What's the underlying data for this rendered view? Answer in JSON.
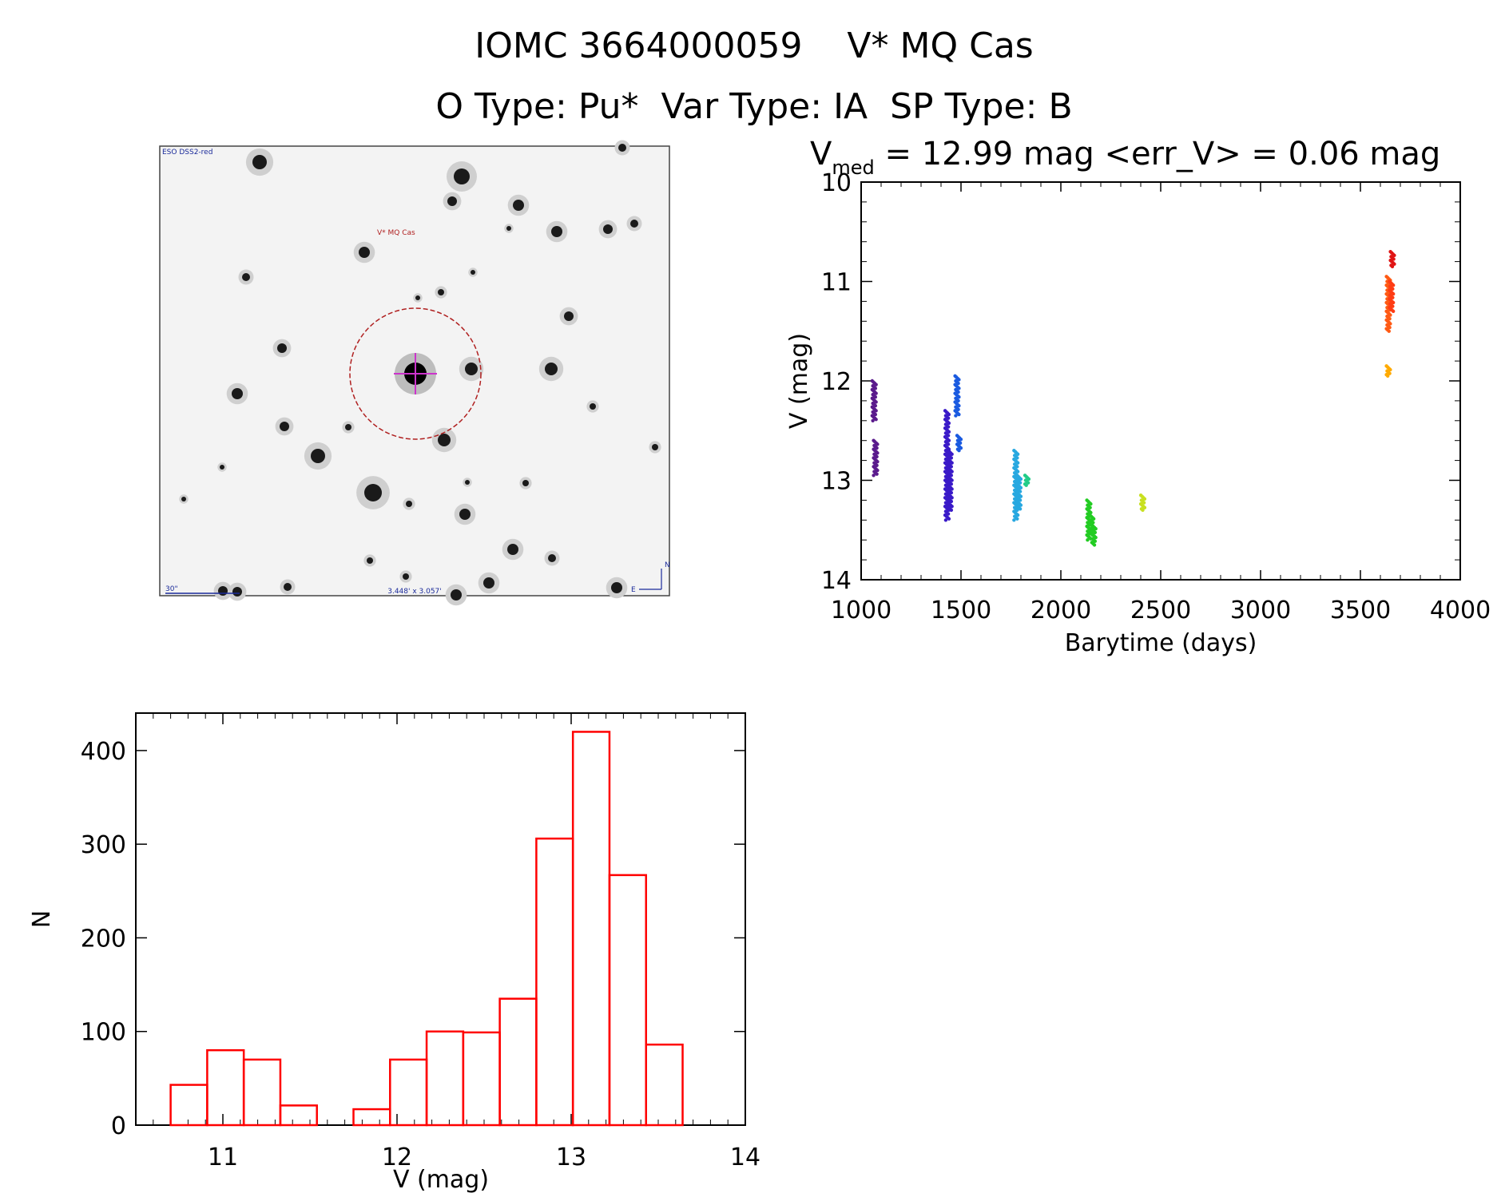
{
  "header": {
    "title": "IOMC 3664000059    V* MQ Cas",
    "subtitle": "O Type: Pu*  Var Type: IA  SP Type: B"
  },
  "finder": {
    "survey_label": "ESO DSS2-red",
    "target_label": "V* MQ Cas",
    "scale_label": "30\"",
    "fov_label": "3.448' x 3.057'",
    "north_label": "N",
    "east_label": "E"
  },
  "chart_data": [
    {
      "type": "scatter",
      "title_prefix": "V",
      "title_sub": "med",
      "title_rest": " = 12.99 mag <err_V> = 0.06 mag",
      "xlabel": "Barytime (days)",
      "ylabel": "V (mag)",
      "xlim": [
        1000,
        4000
      ],
      "ylim": [
        10,
        14
      ],
      "y_inverted": true,
      "xticks": [
        1000,
        1500,
        2000,
        2500,
        3000,
        3500,
        4000
      ],
      "yticks": [
        10,
        11,
        12,
        13,
        14
      ],
      "grid": false,
      "groups": [
        {
          "color": "#5a1a8c",
          "x": [
            1065,
            1072
          ],
          "y": [
            [
              12.0,
              12.4
            ],
            [
              12.6,
              12.95
            ]
          ]
        },
        {
          "color": "#3a1ac8",
          "x": [
            1430,
            1445
          ],
          "y": [
            [
              12.3,
              13.4
            ],
            [
              12.7,
              13.3
            ]
          ]
        },
        {
          "color": "#1a5ae0",
          "x": [
            1480,
            1490
          ],
          "y": [
            [
              11.95,
              12.35
            ],
            [
              12.55,
              12.7
            ]
          ]
        },
        {
          "color": "#28a8e0",
          "x": [
            1775,
            1790
          ],
          "y": [
            [
              12.7,
              13.4
            ],
            [
              12.95,
              13.3
            ]
          ]
        },
        {
          "color": "#22cc88",
          "x": [
            1830
          ],
          "y": [
            [
              12.95,
              13.05
            ]
          ]
        },
        {
          "color": "#22cc22",
          "x": [
            2140,
            2155,
            2165
          ],
          "y": [
            [
              13.2,
              13.6
            ],
            [
              13.35,
              13.55
            ],
            [
              13.45,
              13.65
            ]
          ]
        },
        {
          "color": "#c8e020",
          "x": [
            2410
          ],
          "y": [
            [
              13.15,
              13.3
            ]
          ]
        },
        {
          "color": "#ff5a14",
          "x": [
            3640
          ],
          "y": [
            [
              10.95,
              11.5
            ]
          ]
        },
        {
          "color": "#ff3c14",
          "x": [
            3655
          ],
          "y": [
            [
              11.0,
              11.3
            ]
          ]
        },
        {
          "color": "#ffaa00",
          "x": [
            3640
          ],
          "y": [
            [
              11.85,
              11.95
            ]
          ]
        },
        {
          "color": "#e01414",
          "x": [
            3660
          ],
          "y": [
            [
              10.7,
              10.85
            ]
          ]
        }
      ]
    },
    {
      "type": "histogram",
      "xlabel": "V (mag)",
      "ylabel": "N",
      "xlim": [
        10.5,
        14.0
      ],
      "ylim": [
        0,
        440
      ],
      "xticks": [
        11,
        12,
        13,
        14
      ],
      "yticks": [
        0,
        100,
        200,
        300,
        400
      ],
      "color": "#ff0000",
      "bin_width": 0.21,
      "bins": [
        {
          "start": 10.7,
          "value": 43
        },
        {
          "start": 10.91,
          "value": 80
        },
        {
          "start": 11.12,
          "value": 70
        },
        {
          "start": 11.33,
          "value": 21
        },
        {
          "start": 11.54,
          "value": 0
        },
        {
          "start": 11.75,
          "value": 17
        },
        {
          "start": 11.96,
          "value": 70
        },
        {
          "start": 12.17,
          "value": 100
        },
        {
          "start": 12.38,
          "value": 99
        },
        {
          "start": 12.59,
          "value": 135
        },
        {
          "start": 12.8,
          "value": 306
        },
        {
          "start": 13.01,
          "value": 420
        },
        {
          "start": 13.22,
          "value": 267
        },
        {
          "start": 13.43,
          "value": 86
        }
      ]
    }
  ]
}
